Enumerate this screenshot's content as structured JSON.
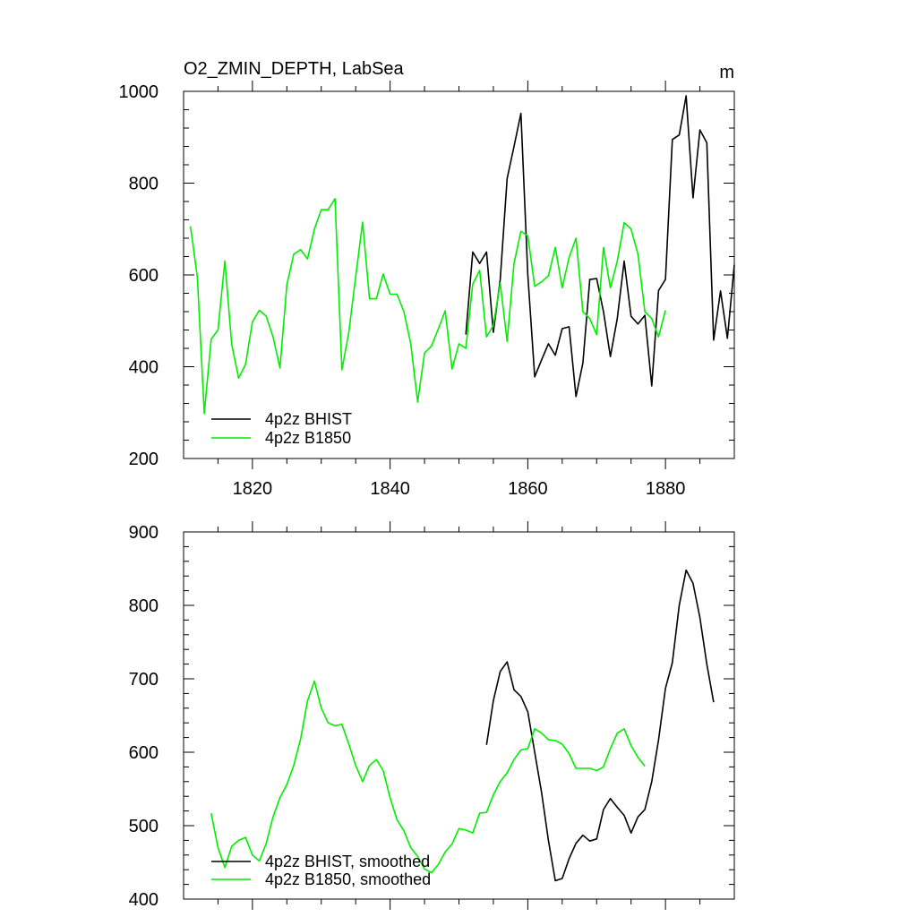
{
  "chart_data": [
    {
      "type": "line",
      "title": "O2_ZMIN_DEPTH, LabSea",
      "units": "m",
      "xlabel": "",
      "ylabel": "",
      "xlim": [
        1810,
        1890
      ],
      "ylim": [
        200,
        1000
      ],
      "x_ticks": [
        1820,
        1840,
        1860,
        1880
      ],
      "x_tick_labels": [
        "1820",
        "1840",
        "1860",
        "1880"
      ],
      "y_ticks": [
        200,
        400,
        600,
        800,
        1000
      ],
      "y_tick_labels": [
        "200",
        "400",
        "600",
        "800",
        "1000"
      ],
      "series": [
        {
          "name": "4p2z BHIST",
          "color": "#000000",
          "x": [
            1851,
            1852,
            1853,
            1854,
            1855,
            1856,
            1857,
            1858,
            1859,
            1860,
            1861,
            1862,
            1863,
            1864,
            1865,
            1866,
            1867,
            1868,
            1869,
            1870,
            1871,
            1872,
            1873,
            1874,
            1875,
            1876,
            1877,
            1878,
            1879,
            1880,
            1881,
            1882,
            1883,
            1884,
            1885,
            1886,
            1887,
            1888,
            1889,
            1890
          ],
          "values": [
            470,
            650,
            625,
            650,
            475,
            590,
            810,
            880,
            952,
            600,
            378,
            415,
            450,
            425,
            483,
            487,
            335,
            408,
            590,
            592,
            520,
            422,
            505,
            630,
            510,
            493,
            512,
            358,
            566,
            590,
            895,
            905,
            990,
            768,
            916,
            888,
            458,
            565,
            462,
            622
          ]
        },
        {
          "name": "4p2z B1850",
          "color": "#00ee00",
          "x": [
            1811,
            1812,
            1813,
            1814,
            1815,
            1816,
            1817,
            1818,
            1819,
            1820,
            1821,
            1822,
            1823,
            1824,
            1825,
            1826,
            1827,
            1828,
            1829,
            1830,
            1831,
            1832,
            1833,
            1834,
            1835,
            1836,
            1837,
            1838,
            1839,
            1840,
            1841,
            1842,
            1843,
            1844,
            1845,
            1846,
            1847,
            1848,
            1849,
            1850,
            1851,
            1852,
            1853,
            1854,
            1855,
            1856,
            1857,
            1858,
            1859,
            1860,
            1861,
            1862,
            1863,
            1864,
            1865,
            1866,
            1867,
            1868,
            1869,
            1870,
            1871,
            1872,
            1873,
            1874,
            1875,
            1876,
            1877,
            1878,
            1879,
            1880
          ],
          "values": [
            706,
            595,
            298,
            460,
            480,
            630,
            448,
            375,
            405,
            498,
            523,
            510,
            465,
            397,
            578,
            645,
            655,
            635,
            700,
            742,
            742,
            766,
            393,
            475,
            596,
            715,
            548,
            548,
            602,
            558,
            558,
            520,
            450,
            323,
            430,
            445,
            482,
            522,
            395,
            450,
            440,
            580,
            610,
            465,
            490,
            582,
            455,
            625,
            695,
            685,
            575,
            585,
            598,
            660,
            572,
            638,
            680,
            520,
            505,
            470,
            660,
            572,
            630,
            714,
            700,
            645,
            520,
            505,
            465,
            523
          ]
        }
      ],
      "legend": {
        "placement": "bottom-left",
        "entries": [
          "4p2z BHIST",
          "4p2z B1850"
        ]
      }
    },
    {
      "type": "line",
      "title": "",
      "xlabel": "",
      "ylabel": "",
      "xlim": [
        1810,
        1890
      ],
      "ylim": [
        400,
        900
      ],
      "x_ticks": [
        1820,
        1840,
        1860,
        1880
      ],
      "x_tick_labels": [
        "",
        "",
        "",
        ""
      ],
      "y_ticks": [
        400,
        500,
        600,
        700,
        800,
        900
      ],
      "y_tick_labels": [
        "400",
        "500",
        "600",
        "700",
        "800",
        "900"
      ],
      "series": [
        {
          "name": "4p2z BHIST, smoothed",
          "color": "#000000",
          "x": [
            1854,
            1855,
            1856,
            1857,
            1858,
            1859,
            1860,
            1861,
            1862,
            1863,
            1864,
            1865,
            1866,
            1867,
            1868,
            1869,
            1870,
            1871,
            1872,
            1873,
            1874,
            1875,
            1876,
            1877,
            1878,
            1879,
            1880,
            1881,
            1882,
            1883,
            1884,
            1885,
            1886,
            1887
          ],
          "values": [
            610,
            670,
            710,
            723,
            685,
            676,
            655,
            600,
            545,
            480,
            425,
            428,
            455,
            476,
            487,
            479,
            482,
            522,
            537,
            525,
            514,
            490,
            512,
            522,
            560,
            617,
            687,
            722,
            800,
            848,
            830,
            783,
            720,
            668
          ]
        },
        {
          "name": "4p2z B1850, smoothed",
          "color": "#00ee00",
          "x": [
            1814,
            1815,
            1816,
            1817,
            1818,
            1819,
            1820,
            1821,
            1822,
            1823,
            1824,
            1825,
            1826,
            1827,
            1828,
            1829,
            1830,
            1831,
            1832,
            1833,
            1834,
            1835,
            1836,
            1837,
            1838,
            1839,
            1840,
            1841,
            1842,
            1843,
            1844,
            1845,
            1846,
            1847,
            1848,
            1849,
            1850,
            1851,
            1852,
            1853,
            1854,
            1855,
            1856,
            1857,
            1858,
            1859,
            1860,
            1861,
            1862,
            1863,
            1864,
            1865,
            1866,
            1867,
            1868,
            1869,
            1870,
            1871,
            1872,
            1873,
            1874,
            1875,
            1876,
            1877
          ],
          "values": [
            517,
            470,
            443,
            472,
            480,
            484,
            460,
            452,
            476,
            512,
            538,
            556,
            582,
            618,
            670,
            697,
            660,
            640,
            636,
            638,
            611,
            582,
            560,
            582,
            590,
            575,
            538,
            508,
            493,
            470,
            458,
            441,
            436,
            447,
            464,
            475,
            496,
            494,
            490,
            517,
            518,
            542,
            560,
            572,
            590,
            603,
            605,
            632,
            626,
            617,
            616,
            611,
            598,
            578,
            578,
            578,
            575,
            580,
            605,
            626,
            632,
            609,
            593,
            581
          ]
        }
      ],
      "legend": {
        "placement": "bottom-left",
        "entries": [
          "4p2z BHIST, smoothed",
          "4p2z B1850, smoothed"
        ]
      }
    }
  ]
}
